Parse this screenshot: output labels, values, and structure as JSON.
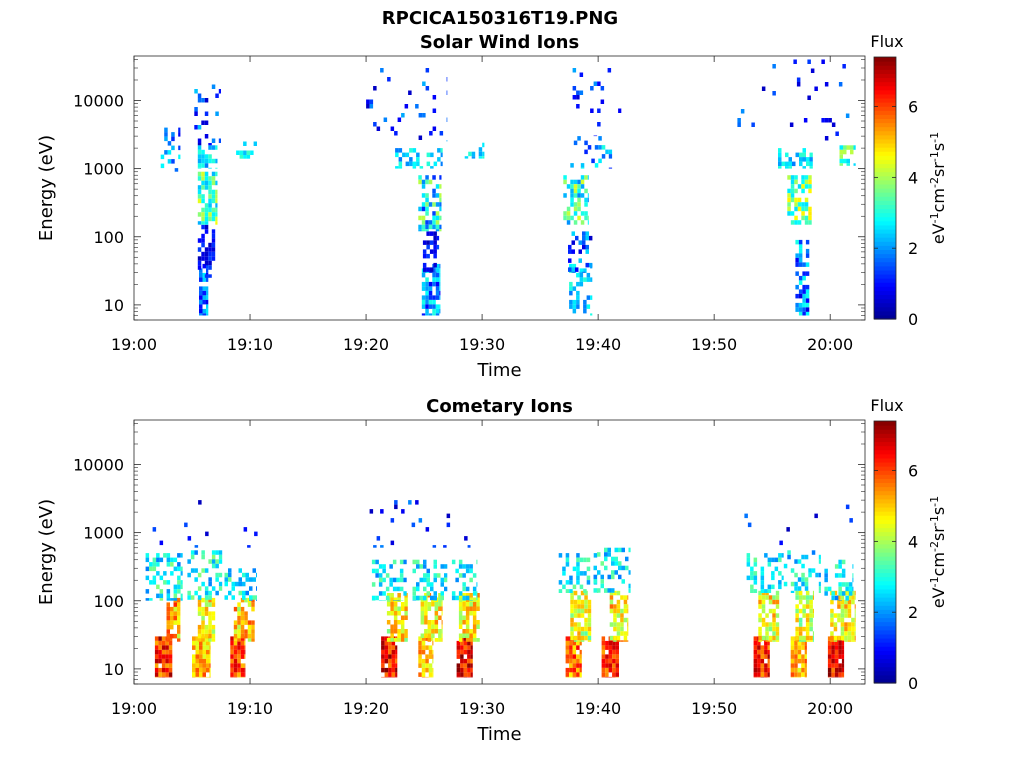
{
  "figure": {
    "title": "RPCICA150316T19.PNG"
  },
  "colormap": {
    "name": "jet",
    "stops": [
      "#00008f",
      "#0000ff",
      "#0080ff",
      "#00ffff",
      "#80ff80",
      "#ffff00",
      "#ff8000",
      "#ff0000",
      "#800000"
    ]
  },
  "chart_data": [
    {
      "type": "heatmap",
      "title": "Solar Wind Ions",
      "xlabel": "Time",
      "ylabel": "Energy (eV)",
      "x_ticks": [
        "19:00",
        "19:10",
        "19:20",
        "19:30",
        "19:40",
        "19:50",
        "20:00"
      ],
      "x_tick_values_min": [
        0,
        10,
        20,
        30,
        40,
        50,
        60
      ],
      "xlim_min": [
        0,
        63
      ],
      "y_scale": "log",
      "y_ticks": [
        "10",
        "100",
        "1000",
        "10000"
      ],
      "y_tick_values": [
        10,
        100,
        1000,
        10000
      ],
      "ylim": [
        6,
        45000
      ],
      "colorbar": {
        "title": "Flux",
        "label": "eV-1cm-2sr-1s-1",
        "ticks": [
          "0",
          "2",
          "4",
          "6"
        ],
        "tick_values": [
          0,
          2,
          4,
          6
        ],
        "range": [
          0,
          7.4
        ]
      },
      "grid": false,
      "patches": [
        {
          "t0": 5.6,
          "t1": 6.4,
          "e0": 7,
          "e1": 40,
          "flux_min": 0.6,
          "flux_max": 2.8,
          "density": 0.85
        },
        {
          "t0": 5.5,
          "t1": 7.0,
          "e0": 25,
          "e1": 150,
          "flux_min": 0.3,
          "flux_max": 1.4,
          "density": 0.55
        },
        {
          "t0": 5.5,
          "t1": 7.2,
          "e0": 150,
          "e1": 900,
          "flux_min": 2.2,
          "flux_max": 4.6,
          "density": 0.75
        },
        {
          "t0": 5.5,
          "t1": 7.2,
          "e0": 1000,
          "e1": 2200,
          "flux_min": 1.8,
          "flux_max": 3.2,
          "density": 0.45
        },
        {
          "t0": 5.2,
          "t1": 7.5,
          "e0": 2200,
          "e1": 20000,
          "flux_min": 0.4,
          "flux_max": 2.4,
          "density": 0.12
        },
        {
          "t0": 2.3,
          "t1": 4.0,
          "e0": 900,
          "e1": 4000,
          "flux_min": 0.6,
          "flux_max": 2.8,
          "density": 0.3
        },
        {
          "t0": 8.5,
          "t1": 10.6,
          "e0": 1400,
          "e1": 2500,
          "flux_min": 2.0,
          "flux_max": 3.4,
          "density": 0.4
        },
        {
          "t0": 24.8,
          "t1": 26.4,
          "e0": 7,
          "e1": 40,
          "flux_min": 0.8,
          "flux_max": 3.0,
          "density": 0.8
        },
        {
          "t0": 24.9,
          "t1": 26.3,
          "e0": 30,
          "e1": 120,
          "flux_min": 0.3,
          "flux_max": 1.5,
          "density": 0.55
        },
        {
          "t0": 24.5,
          "t1": 26.5,
          "e0": 120,
          "e1": 800,
          "flux_min": 1.2,
          "flux_max": 4.2,
          "density": 0.6
        },
        {
          "t0": 22.5,
          "t1": 26.6,
          "e0": 1000,
          "e1": 2000,
          "flux_min": 1.8,
          "flux_max": 3.2,
          "density": 0.35
        },
        {
          "t0": 28.5,
          "t1": 30.2,
          "e0": 1400,
          "e1": 2400,
          "flux_min": 2.0,
          "flux_max": 3.2,
          "density": 0.5
        },
        {
          "t0": 20.0,
          "t1": 27.0,
          "e0": 2500,
          "e1": 30000,
          "flux_min": 0.4,
          "flux_max": 2.2,
          "density": 0.06
        },
        {
          "t0": 37.5,
          "t1": 39.5,
          "e0": 7,
          "e1": 40,
          "flux_min": 1.8,
          "flux_max": 3.2,
          "density": 0.45
        },
        {
          "t0": 37.4,
          "t1": 39.5,
          "e0": 30,
          "e1": 120,
          "flux_min": 0.3,
          "flux_max": 2.6,
          "density": 0.45
        },
        {
          "t0": 37.0,
          "t1": 39.2,
          "e0": 150,
          "e1": 800,
          "flux_min": 1.8,
          "flux_max": 4.4,
          "density": 0.55
        },
        {
          "t0": 37.6,
          "t1": 41.2,
          "e0": 1000,
          "e1": 3000,
          "flux_min": 1.0,
          "flux_max": 3.0,
          "density": 0.2
        },
        {
          "t0": 37.5,
          "t1": 42.0,
          "e0": 3000,
          "e1": 30000,
          "flux_min": 0.4,
          "flux_max": 2.2,
          "density": 0.08
        },
        {
          "t0": 57.0,
          "t1": 58.2,
          "e0": 7,
          "e1": 90,
          "flux_min": 0.6,
          "flux_max": 3.0,
          "density": 0.7
        },
        {
          "t0": 56.3,
          "t1": 58.4,
          "e0": 150,
          "e1": 800,
          "flux_min": 2.5,
          "flux_max": 4.8,
          "density": 0.75
        },
        {
          "t0": 55.5,
          "t1": 58.5,
          "e0": 1000,
          "e1": 2000,
          "flux_min": 1.8,
          "flux_max": 3.2,
          "density": 0.35
        },
        {
          "t0": 60.8,
          "t1": 62.2,
          "e0": 1100,
          "e1": 2200,
          "flux_min": 2.4,
          "flux_max": 4.2,
          "density": 0.6
        },
        {
          "t0": 52.0,
          "t1": 62.0,
          "e0": 2500,
          "e1": 40000,
          "flux_min": 0.4,
          "flux_max": 2.0,
          "density": 0.04
        }
      ]
    },
    {
      "type": "heatmap",
      "title": "Cometary Ions",
      "xlabel": "Time",
      "ylabel": "Energy (eV)",
      "x_ticks": [
        "19:00",
        "19:10",
        "19:20",
        "19:30",
        "19:40",
        "19:50",
        "20:00"
      ],
      "x_tick_values_min": [
        0,
        10,
        20,
        30,
        40,
        50,
        60
      ],
      "xlim_min": [
        0,
        63
      ],
      "y_scale": "log",
      "y_ticks": [
        "10",
        "100",
        "1000",
        "10000"
      ],
      "y_tick_values": [
        10,
        100,
        1000,
        10000
      ],
      "ylim": [
        6,
        45000
      ],
      "colorbar": {
        "title": "Flux",
        "label": "eV-1cm-2sr-1s-1",
        "ticks": [
          "0",
          "2",
          "4",
          "6"
        ],
        "tick_values": [
          0,
          2,
          4,
          6
        ],
        "range": [
          0,
          7.4
        ]
      },
      "grid": false,
      "patches": [
        {
          "t0": 1.8,
          "t1": 3.3,
          "e0": 7.5,
          "e1": 30,
          "flux_min": 5.2,
          "flux_max": 7.3,
          "density": 0.95
        },
        {
          "t0": 2.8,
          "t1": 4.0,
          "e0": 25,
          "e1": 110,
          "flux_min": 4.0,
          "flux_max": 6.3,
          "density": 0.8
        },
        {
          "t0": 1.0,
          "t1": 4.2,
          "e0": 100,
          "e1": 500,
          "flux_min": 1.8,
          "flux_max": 3.8,
          "density": 0.45
        },
        {
          "t0": 5.0,
          "t1": 6.6,
          "e0": 7.5,
          "e1": 30,
          "flux_min": 4.3,
          "flux_max": 6.0,
          "density": 0.95
        },
        {
          "t0": 5.5,
          "t1": 7.0,
          "e0": 25,
          "e1": 110,
          "flux_min": 3.8,
          "flux_max": 5.6,
          "density": 0.8
        },
        {
          "t0": 4.6,
          "t1": 7.6,
          "e0": 100,
          "e1": 550,
          "flux_min": 1.8,
          "flux_max": 3.8,
          "density": 0.45
        },
        {
          "t0": 8.3,
          "t1": 9.6,
          "e0": 7.5,
          "e1": 30,
          "flux_min": 4.8,
          "flux_max": 6.8,
          "density": 0.95
        },
        {
          "t0": 8.6,
          "t1": 10.4,
          "e0": 25,
          "e1": 110,
          "flux_min": 3.8,
          "flux_max": 6.0,
          "density": 0.8
        },
        {
          "t0": 7.8,
          "t1": 10.6,
          "e0": 100,
          "e1": 300,
          "flux_min": 1.8,
          "flux_max": 3.6,
          "density": 0.4
        },
        {
          "t0": 21.3,
          "t1": 22.7,
          "e0": 7.5,
          "e1": 30,
          "flux_min": 5.5,
          "flux_max": 7.4,
          "density": 0.95
        },
        {
          "t0": 21.8,
          "t1": 23.6,
          "e0": 25,
          "e1": 130,
          "flux_min": 3.6,
          "flux_max": 5.6,
          "density": 0.75
        },
        {
          "t0": 20.5,
          "t1": 23.5,
          "e0": 100,
          "e1": 400,
          "flux_min": 1.8,
          "flux_max": 3.6,
          "density": 0.4
        },
        {
          "t0": 24.5,
          "t1": 25.8,
          "e0": 7.5,
          "e1": 30,
          "flux_min": 4.3,
          "flux_max": 5.8,
          "density": 0.9
        },
        {
          "t0": 24.7,
          "t1": 26.6,
          "e0": 25,
          "e1": 130,
          "flux_min": 3.8,
          "flux_max": 5.6,
          "density": 0.75
        },
        {
          "t0": 24.0,
          "t1": 27.0,
          "e0": 100,
          "e1": 400,
          "flux_min": 1.8,
          "flux_max": 3.6,
          "density": 0.4
        },
        {
          "t0": 27.8,
          "t1": 29.2,
          "e0": 7.5,
          "e1": 30,
          "flux_min": 5.5,
          "flux_max": 7.4,
          "density": 0.95
        },
        {
          "t0": 28.0,
          "t1": 29.8,
          "e0": 25,
          "e1": 130,
          "flux_min": 3.8,
          "flux_max": 5.6,
          "density": 0.75
        },
        {
          "t0": 27.4,
          "t1": 29.6,
          "e0": 100,
          "e1": 400,
          "flux_min": 1.8,
          "flux_max": 3.6,
          "density": 0.4
        },
        {
          "t0": 37.2,
          "t1": 38.6,
          "e0": 7.5,
          "e1": 30,
          "flux_min": 4.6,
          "flux_max": 6.6,
          "density": 0.9
        },
        {
          "t0": 37.6,
          "t1": 39.4,
          "e0": 25,
          "e1": 140,
          "flux_min": 3.4,
          "flux_max": 5.4,
          "density": 0.75
        },
        {
          "t0": 36.6,
          "t1": 40.0,
          "e0": 130,
          "e1": 500,
          "flux_min": 1.8,
          "flux_max": 3.6,
          "density": 0.4
        },
        {
          "t0": 40.3,
          "t1": 41.8,
          "e0": 7.5,
          "e1": 30,
          "flux_min": 5.2,
          "flux_max": 7.0,
          "density": 0.9
        },
        {
          "t0": 41.0,
          "t1": 42.6,
          "e0": 25,
          "e1": 140,
          "flux_min": 3.8,
          "flux_max": 5.8,
          "density": 0.75
        },
        {
          "t0": 39.6,
          "t1": 42.8,
          "e0": 130,
          "e1": 600,
          "flux_min": 1.8,
          "flux_max": 3.6,
          "density": 0.35
        },
        {
          "t0": 53.4,
          "t1": 54.8,
          "e0": 7.5,
          "e1": 30,
          "flux_min": 5.2,
          "flux_max": 7.2,
          "density": 0.95
        },
        {
          "t0": 53.8,
          "t1": 55.6,
          "e0": 25,
          "e1": 140,
          "flux_min": 3.6,
          "flux_max": 5.6,
          "density": 0.75
        },
        {
          "t0": 52.8,
          "t1": 56.0,
          "e0": 130,
          "e1": 500,
          "flux_min": 1.8,
          "flux_max": 3.6,
          "density": 0.35
        },
        {
          "t0": 56.6,
          "t1": 58.0,
          "e0": 7.5,
          "e1": 30,
          "flux_min": 4.3,
          "flux_max": 6.0,
          "density": 0.9
        },
        {
          "t0": 57.0,
          "t1": 58.6,
          "e0": 25,
          "e1": 140,
          "flux_min": 3.4,
          "flux_max": 5.4,
          "density": 0.75
        },
        {
          "t0": 56.0,
          "t1": 59.2,
          "e0": 130,
          "e1": 550,
          "flux_min": 1.8,
          "flux_max": 3.6,
          "density": 0.35
        },
        {
          "t0": 59.8,
          "t1": 61.2,
          "e0": 7.5,
          "e1": 30,
          "flux_min": 5.5,
          "flux_max": 7.4,
          "density": 0.95
        },
        {
          "t0": 60.0,
          "t1": 62.2,
          "e0": 25,
          "e1": 140,
          "flux_min": 3.8,
          "flux_max": 5.6,
          "density": 0.75
        },
        {
          "t0": 59.5,
          "t1": 62.0,
          "e0": 100,
          "e1": 400,
          "flux_min": 1.8,
          "flux_max": 3.6,
          "density": 0.35
        },
        {
          "t0": 1.0,
          "t1": 11.0,
          "e0": 600,
          "e1": 3000,
          "flux_min": 0.3,
          "flux_max": 2.0,
          "density": 0.03
        },
        {
          "t0": 20.0,
          "t1": 29.0,
          "e0": 600,
          "e1": 3000,
          "flux_min": 0.3,
          "flux_max": 2.0,
          "density": 0.03
        },
        {
          "t0": 52.0,
          "t1": 62.0,
          "e0": 600,
          "e1": 3000,
          "flux_min": 0.3,
          "flux_max": 2.0,
          "density": 0.03
        }
      ]
    }
  ]
}
